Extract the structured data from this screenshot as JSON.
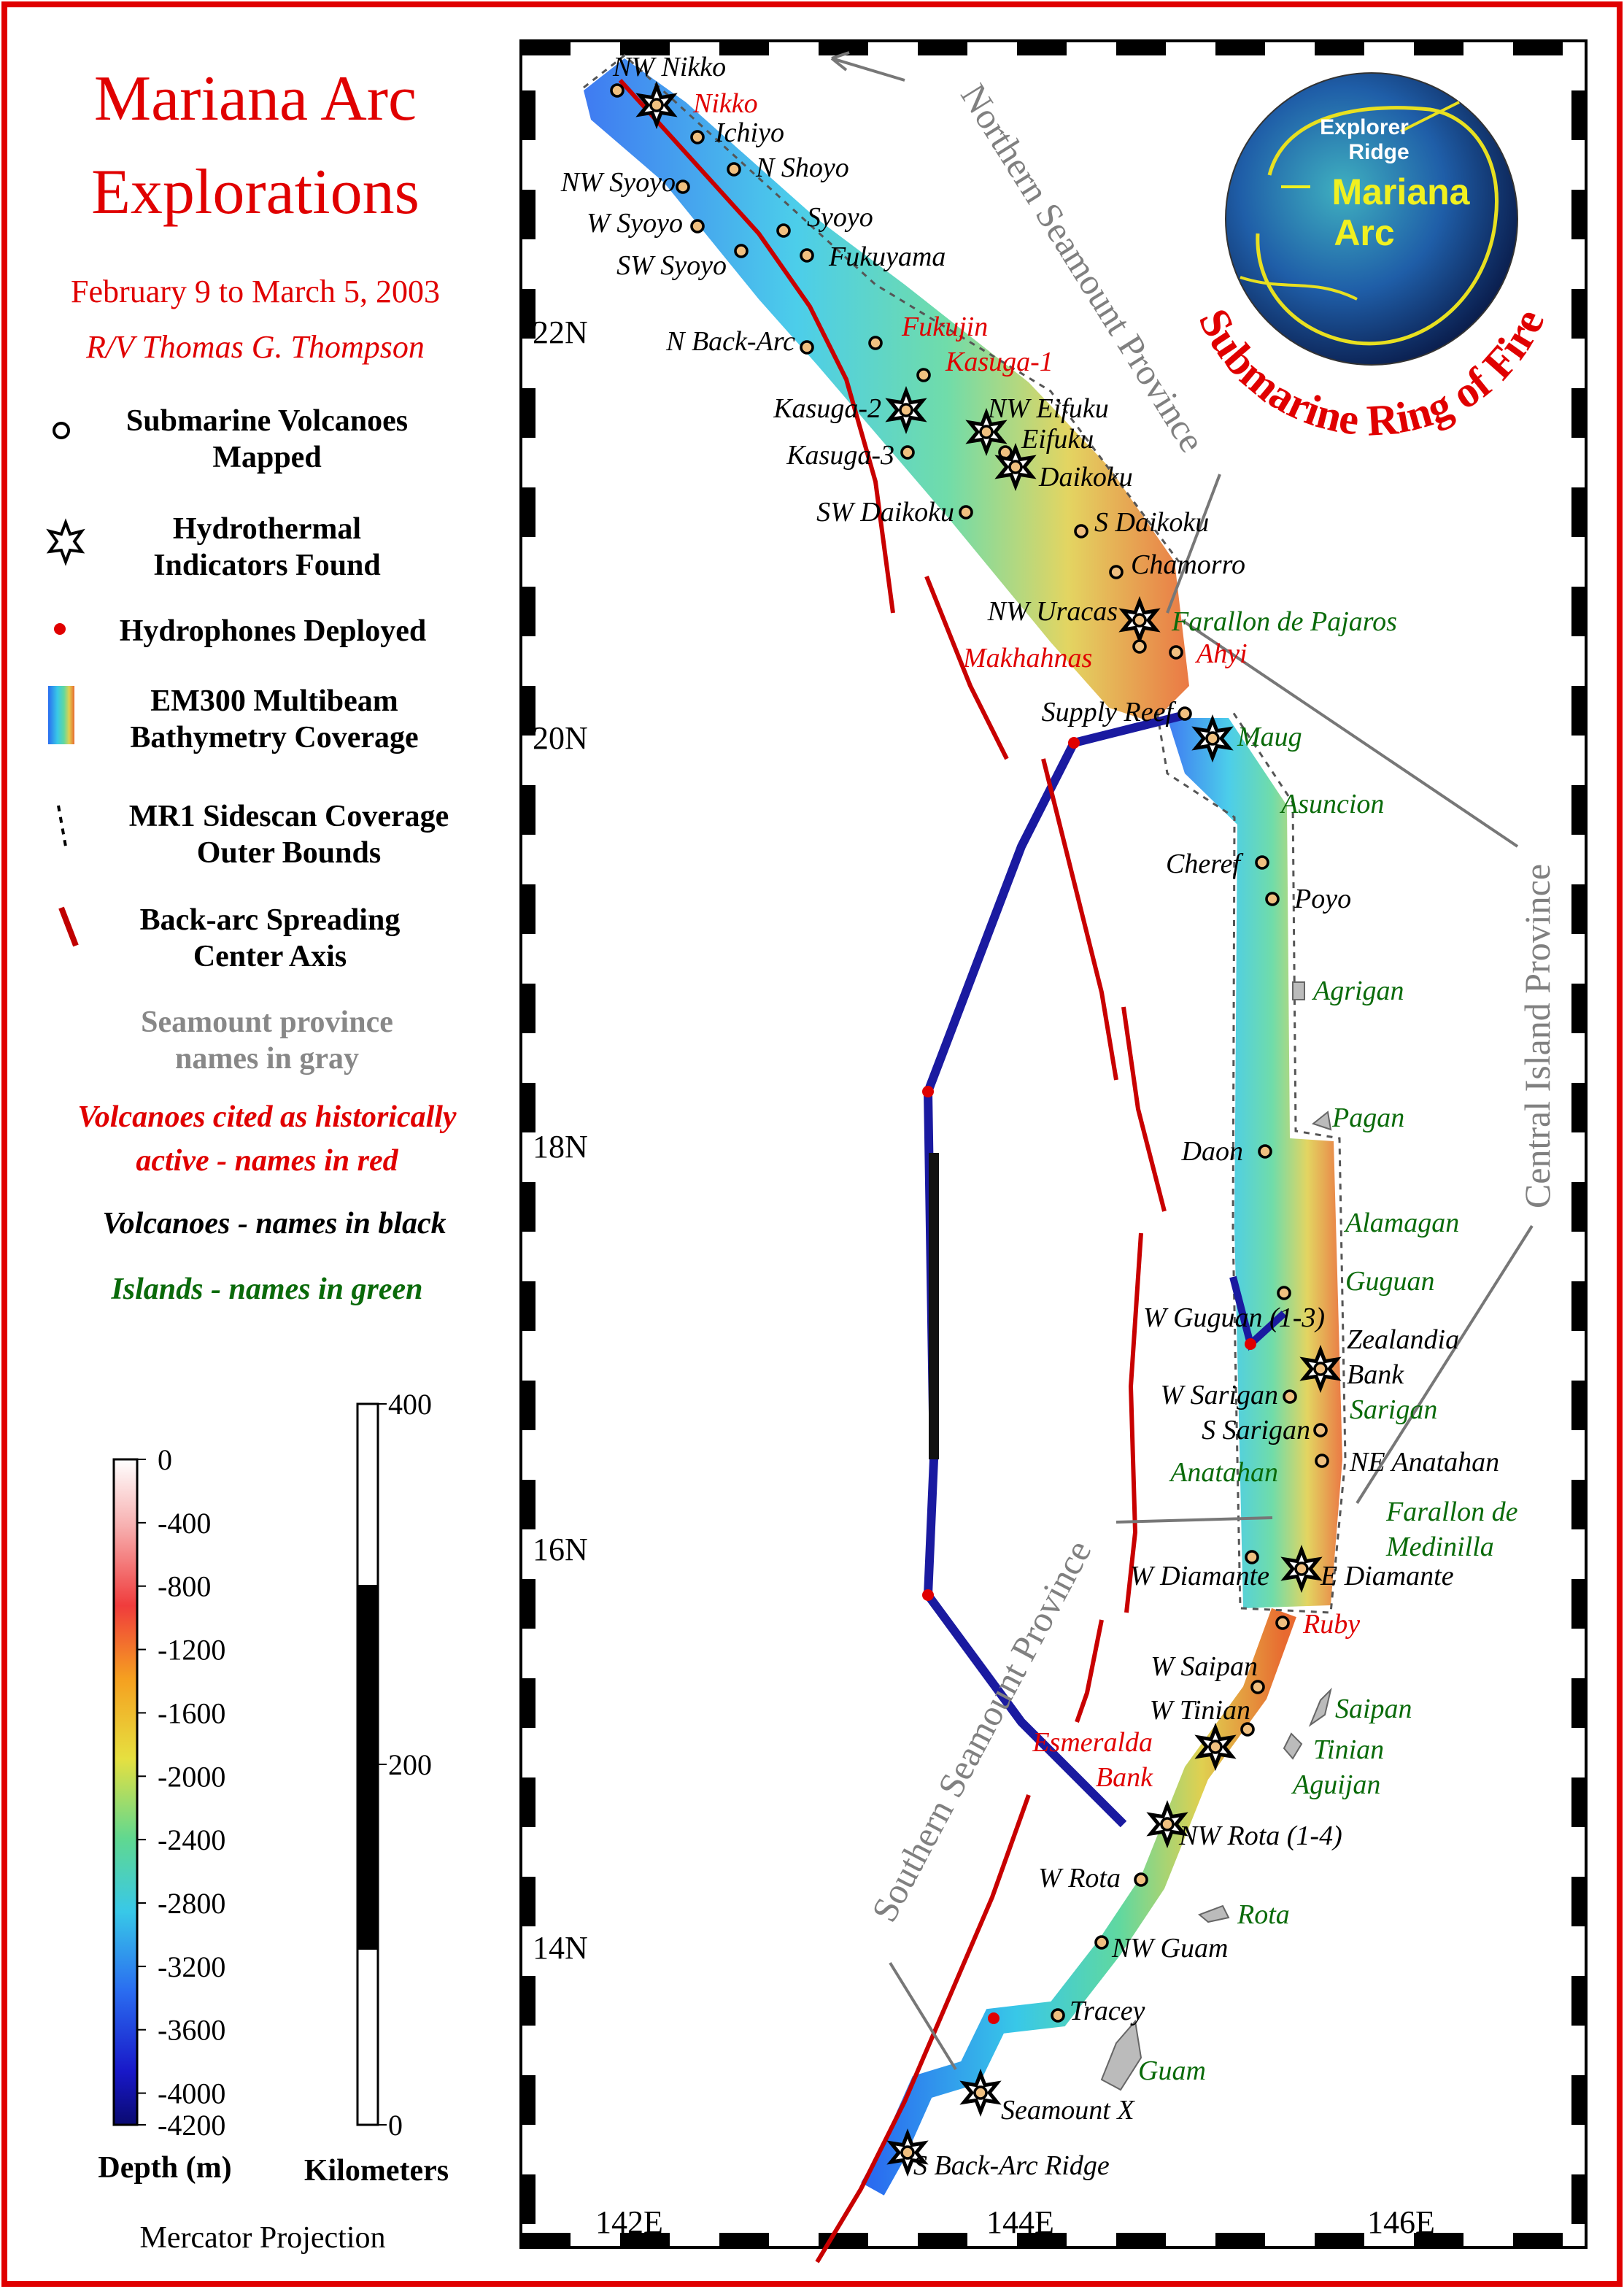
{
  "legend": {
    "title": [
      "Mariana Arc",
      "Explorations"
    ],
    "dates": "February 9 to March 5, 2003",
    "ship": "R/V Thomas G. Thompson",
    "items": [
      [
        "Submarine Volcanoes",
        "Mapped"
      ],
      [
        "Hydrothermal",
        "Indicators Found"
      ],
      [
        "Hydrophones Deployed"
      ],
      [
        "EM300 Multibeam",
        "Bathymetry Coverage"
      ],
      [
        "MR1 Sidescan Coverage",
        "Outer Bounds"
      ],
      [
        "Back-arc Spreading",
        "Center Axis"
      ],
      [
        "Seamount province",
        "names in gray"
      ],
      [
        "Volcanoes cited as historically",
        "active - names in red"
      ],
      [
        "Volcanoes - names in black"
      ],
      [
        "Islands - names in green"
      ]
    ],
    "depth_scale": {
      "title": "Depth (m)",
      "ticks": [
        0,
        -400,
        -800,
        -1200,
        -1600,
        -2000,
        -2400,
        -2800,
        -3200,
        -3600,
        -4000,
        -4200
      ]
    },
    "distance_scale": {
      "title": "Kilometers",
      "ticks": [
        400,
        200,
        0
      ]
    },
    "projection": "Mercator Projection"
  },
  "map": {
    "latitudes": [
      "22N",
      "20N",
      "18N",
      "16N",
      "14N"
    ],
    "longitudes": [
      "142E",
      "144E",
      "146E"
    ],
    "provinces": [
      "Northern Seamount Province",
      "Central Island Province",
      "Southern Seamount Province"
    ],
    "globe": {
      "labels": [
        "Explorer",
        "Ridge",
        "Mariana",
        "Arc"
      ],
      "ring": "Submarine Ring of Fire"
    },
    "volcanoes": [
      "NW Nikko",
      "Ichiyo",
      "N Shoyo",
      "NW Syoyo",
      "W Syoyo",
      "Syoyo",
      "SW Syoyo",
      "Fukuyama",
      "N Back-Arc",
      "Kasuga-2",
      "NW Eifuku",
      "Eifuku",
      "Kasuga-3",
      "Daikoku",
      "SW Daikoku",
      "S Daikoku",
      "Chamorro",
      "NW Uracas",
      "Supply Reef",
      "Cheref",
      "Poyo",
      "Daon",
      "W Guguan (1-3)",
      [
        "Zealandia",
        "Bank"
      ],
      "W Sarigan",
      "S Sarigan",
      "NE Anatahan",
      "W Diamante",
      "E Diamante",
      "W Saipan",
      "W Tinian",
      "NW Rota (1-4)",
      "W Rota",
      "NW Guam",
      "Tracey",
      "Seamount X",
      "S Back-Arc Ridge"
    ],
    "historically_active": [
      "Nikko",
      "Fukujin",
      "Kasuga-1",
      "Makhahnas",
      "Ahyi",
      [
        "Esmeralda",
        "Bank"
      ],
      "Ruby"
    ],
    "islands": [
      "Farallon de Pajaros",
      "Maug",
      "Asuncion",
      "Agrigan",
      "Pagan",
      "Alamagan",
      "Guguan",
      "Sarigan",
      "Anatahan",
      [
        "Farallon de",
        "Medinilla"
      ],
      "Saipan",
      "Tinian",
      "Aguijan",
      "Rota",
      "Guam"
    ]
  }
}
